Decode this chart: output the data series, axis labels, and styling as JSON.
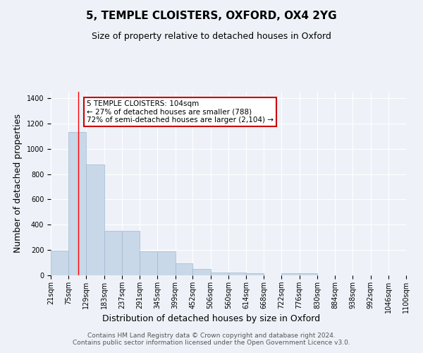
{
  "title": "5, TEMPLE CLOISTERS, OXFORD, OX4 2YG",
  "subtitle": "Size of property relative to detached houses in Oxford",
  "xlabel": "Distribution of detached houses by size in Oxford",
  "ylabel": "Number of detached properties",
  "bin_edges": [
    21,
    75,
    129,
    183,
    237,
    291,
    345,
    399,
    452,
    506,
    560,
    614,
    668,
    722,
    776,
    830,
    884,
    938,
    992,
    1046,
    1100
  ],
  "bar_heights": [
    197,
    1130,
    878,
    353,
    353,
    192,
    192,
    97,
    50,
    20,
    20,
    15,
    0,
    15,
    15,
    0,
    0,
    0,
    0,
    0
  ],
  "bar_color": "#c8d8e8",
  "bar_edge_color": "#a0b8d0",
  "background_color": "#eef2f8",
  "grid_color": "#ffffff",
  "red_line_x": 104,
  "annotation_text": "5 TEMPLE CLOISTERS: 104sqm\n← 27% of detached houses are smaller (788)\n72% of semi-detached houses are larger (2,104) →",
  "annotation_box_color": "#ffffff",
  "annotation_box_edge_color": "#cc0000",
  "ylim": [
    0,
    1450
  ],
  "yticks": [
    0,
    200,
    400,
    600,
    800,
    1000,
    1200,
    1400
  ],
  "footer_text": "Contains HM Land Registry data © Crown copyright and database right 2024.\nContains public sector information licensed under the Open Government Licence v3.0.",
  "title_fontsize": 11,
  "subtitle_fontsize": 9,
  "axis_label_fontsize": 9,
  "tick_fontsize": 7,
  "annotation_fontsize": 7.5,
  "footer_fontsize": 6.5
}
